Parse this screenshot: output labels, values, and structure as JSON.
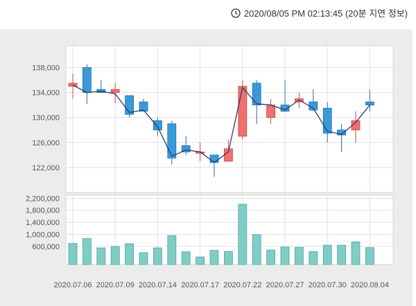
{
  "header": {
    "timestamp": "2020/08/05 PM 02:13:45 (20분 지연 정보)",
    "icon": "clock-icon"
  },
  "chart_data": {
    "type": "candlestick",
    "colors": {
      "up": "#f07070",
      "down": "#3a9ad9",
      "volume": "#7fcdc6",
      "line": "#2b3a6b"
    },
    "price": {
      "ylim": [
        118000,
        141500
      ],
      "yticks": [
        "122,000",
        "126,000",
        "130,000",
        "134,000",
        "138,000"
      ],
      "ytick_values": [
        122000,
        126000,
        130000,
        134000,
        138000
      ],
      "candles": [
        {
          "o": 135000,
          "h": 137000,
          "l": 133000,
          "c": 135500
        },
        {
          "o": 138000,
          "h": 138500,
          "l": 132200,
          "c": 134000
        },
        {
          "o": 134500,
          "h": 136000,
          "l": 134000,
          "c": 134000
        },
        {
          "o": 134000,
          "h": 135500,
          "l": 132300,
          "c": 134500
        },
        {
          "o": 133500,
          "h": 133500,
          "l": 130000,
          "c": 130500
        },
        {
          "o": 132500,
          "h": 133000,
          "l": 131000,
          "c": 131000
        },
        {
          "o": 129500,
          "h": 130000,
          "l": 127000,
          "c": 128000
        },
        {
          "o": 129000,
          "h": 129500,
          "l": 122500,
          "c": 123500
        },
        {
          "o": 125500,
          "h": 127000,
          "l": 124000,
          "c": 124500
        },
        {
          "o": 124500,
          "h": 126000,
          "l": 123000,
          "c": 124500
        },
        {
          "o": 124000,
          "h": 124000,
          "l": 120500,
          "c": 122800
        },
        {
          "o": 123000,
          "h": 126500,
          "l": 123000,
          "c": 125000
        },
        {
          "o": 127000,
          "h": 136000,
          "l": 126500,
          "c": 135000
        },
        {
          "o": 135500,
          "h": 136000,
          "l": 129000,
          "c": 132000
        },
        {
          "o": 130000,
          "h": 133000,
          "l": 129000,
          "c": 132000
        },
        {
          "o": 132000,
          "h": 136000,
          "l": 131000,
          "c": 131000
        },
        {
          "o": 132500,
          "h": 134000,
          "l": 131500,
          "c": 133000
        },
        {
          "o": 132500,
          "h": 134500,
          "l": 131000,
          "c": 131200
        },
        {
          "o": 131500,
          "h": 132500,
          "l": 126000,
          "c": 127500
        },
        {
          "o": 128000,
          "h": 129000,
          "l": 124500,
          "c": 127200
        },
        {
          "o": 128000,
          "h": 131000,
          "l": 126000,
          "c": 129500
        },
        {
          "o": 132500,
          "h": 134500,
          "l": 131000,
          "c": 132000
        }
      ],
      "line": [
        135200,
        134000,
        134200,
        133800,
        130800,
        131200,
        128500,
        123800,
        124800,
        124500,
        122800,
        124500,
        134800,
        132200,
        132000,
        131200,
        132800,
        131500,
        127800,
        127300,
        129200,
        132000
      ]
    },
    "volume": {
      "ylim": [
        0,
        2300000
      ],
      "yticks": [
        "600,000",
        "1,000,000",
        "1,400,000",
        "1,800,000",
        "2,200,000"
      ],
      "ytick_values": [
        600000,
        1000000,
        1400000,
        1800000,
        2200000
      ],
      "values": [
        700000,
        860000,
        550000,
        600000,
        690000,
        390000,
        550000,
        960000,
        420000,
        250000,
        470000,
        430000,
        2000000,
        990000,
        480000,
        580000,
        570000,
        430000,
        640000,
        640000,
        750000,
        560000
      ]
    },
    "x_labels": [
      {
        "label": "2020.07.06",
        "index": 0
      },
      {
        "label": "2020.07.09",
        "index": 3
      },
      {
        "label": "2020.07.14",
        "index": 6
      },
      {
        "label": "2020.07.17",
        "index": 9
      },
      {
        "label": "2020.07.22",
        "index": 12
      },
      {
        "label": "2020.07.27",
        "index": 15
      },
      {
        "label": "2020.07.30",
        "index": 18
      },
      {
        "label": "2020.08.04",
        "index": 21
      }
    ]
  }
}
